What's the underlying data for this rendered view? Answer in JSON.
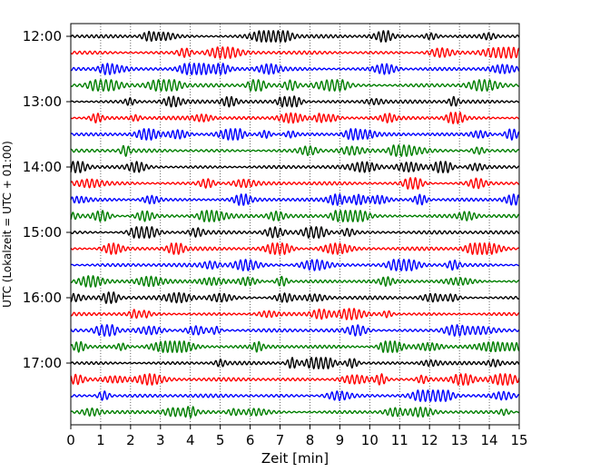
{
  "chart_data": {
    "type": "line",
    "title": "",
    "xlabel": "Zeit  [min]",
    "ylabel": "UTC (Lokalzeit = UTC + 01:00)",
    "xlim": [
      0,
      15
    ],
    "x_ticks": [
      "0",
      "1",
      "2",
      "3",
      "4",
      "5",
      "6",
      "7",
      "8",
      "9",
      "10",
      "11",
      "12",
      "13",
      "14",
      "15"
    ],
    "y_ticks": [
      "12:00",
      "13:00",
      "14:00",
      "15:00",
      "16:00",
      "17:00"
    ],
    "grid": "vertical-dotted",
    "traces_per_hour": 4,
    "trace_interval_min": 15,
    "first_trace": "12:00",
    "last_trace": "17:45",
    "series": [
      {
        "name": "12:00",
        "color": "#000000"
      },
      {
        "name": "12:15",
        "color": "#ff0000"
      },
      {
        "name": "12:30",
        "color": "#0000ff"
      },
      {
        "name": "12:45",
        "color": "#007f00"
      },
      {
        "name": "13:00",
        "color": "#000000"
      },
      {
        "name": "13:15",
        "color": "#ff0000"
      },
      {
        "name": "13:30",
        "color": "#0000ff"
      },
      {
        "name": "13:45",
        "color": "#007f00"
      },
      {
        "name": "14:00",
        "color": "#000000"
      },
      {
        "name": "14:15",
        "color": "#ff0000"
      },
      {
        "name": "14:30",
        "color": "#0000ff"
      },
      {
        "name": "14:45",
        "color": "#007f00"
      },
      {
        "name": "15:00",
        "color": "#000000"
      },
      {
        "name": "15:15",
        "color": "#ff0000"
      },
      {
        "name": "15:30",
        "color": "#0000ff"
      },
      {
        "name": "15:45",
        "color": "#007f00"
      },
      {
        "name": "16:00",
        "color": "#000000"
      },
      {
        "name": "16:15",
        "color": "#ff0000"
      },
      {
        "name": "16:30",
        "color": "#0000ff"
      },
      {
        "name": "16:45",
        "color": "#007f00"
      },
      {
        "name": "17:00",
        "color": "#000000"
      },
      {
        "name": "17:15",
        "color": "#ff0000"
      },
      {
        "name": "17:30",
        "color": "#0000ff"
      },
      {
        "name": "17:45",
        "color": "#007f00"
      }
    ]
  }
}
